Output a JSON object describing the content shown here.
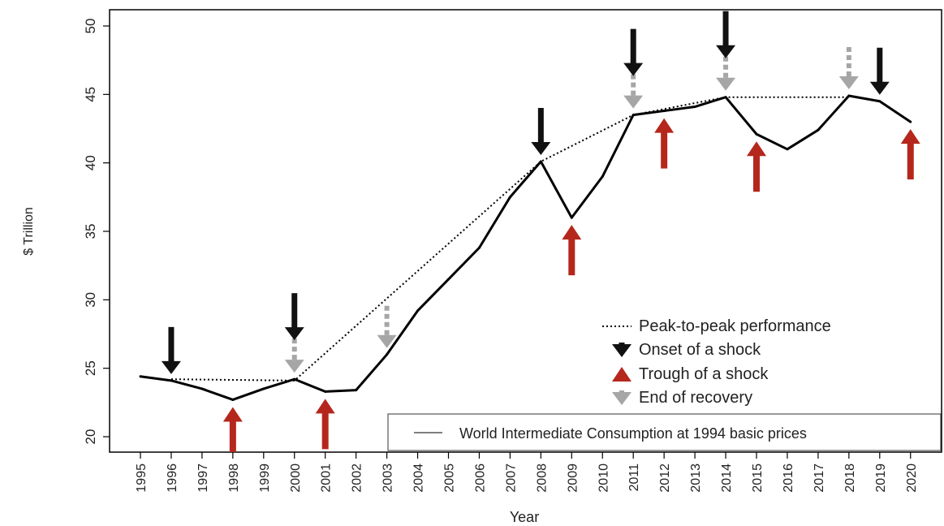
{
  "chart_data": {
    "type": "line",
    "title": "",
    "xlabel": "Year",
    "ylabel": "$ Trillion",
    "ylim": [
      20,
      50
    ],
    "yticks": [
      20,
      25,
      30,
      35,
      40,
      45,
      50
    ],
    "grid": false,
    "categories": [
      "1995",
      "1996",
      "1997",
      "1998",
      "1999",
      "2000",
      "2001",
      "2002",
      "2003",
      "2004",
      "2005",
      "2006",
      "2007",
      "2008",
      "2009",
      "2010",
      "2011",
      "2012",
      "2013",
      "2014",
      "2015",
      "2016",
      "2017",
      "2018",
      "2019",
      "2020"
    ],
    "series": [
      {
        "name": "World Intermediate Consumption at 1994 basic prices",
        "color": "#000000",
        "values": [
          24.4,
          24.1,
          23.5,
          22.7,
          23.5,
          24.2,
          23.3,
          23.4,
          26.0,
          29.2,
          31.5,
          33.8,
          37.5,
          40.1,
          36.0,
          39.0,
          43.5,
          43.8,
          44.1,
          44.8,
          42.1,
          41.0,
          42.4,
          44.9,
          44.5,
          43.0
        ]
      },
      {
        "name": "Peak-to-peak performance",
        "style": "dotted",
        "color": "#000000",
        "points": [
          {
            "x": "1996",
            "y": 24.2
          },
          {
            "x": "2000",
            "y": 24.1
          },
          {
            "x": "2008",
            "y": 40.1
          },
          {
            "x": "2011",
            "y": 43.5
          },
          {
            "x": "2014",
            "y": 44.8
          },
          {
            "x": "2018",
            "y": 44.8
          }
        ]
      }
    ],
    "markers": {
      "onset": {
        "label": "Onset of a shock",
        "color": "#111111",
        "years": [
          "1996",
          "2000",
          "2008",
          "2011",
          "2014",
          "2019"
        ]
      },
      "trough": {
        "label": "Trough of a shock",
        "color": "#b5271c",
        "years": [
          "1998",
          "2001",
          "2009",
          "2012",
          "2015",
          "2020"
        ]
      },
      "recovery": {
        "label": "End of recovery",
        "color": "#a6a6a6",
        "years": [
          "2000",
          "2003",
          "2011",
          "2014",
          "2018"
        ]
      }
    },
    "legend": {
      "placement": "right",
      "peak_label": "Peak-to-peak performance",
      "series_label": "World Intermediate Consumption at 1994 basic prices"
    }
  }
}
